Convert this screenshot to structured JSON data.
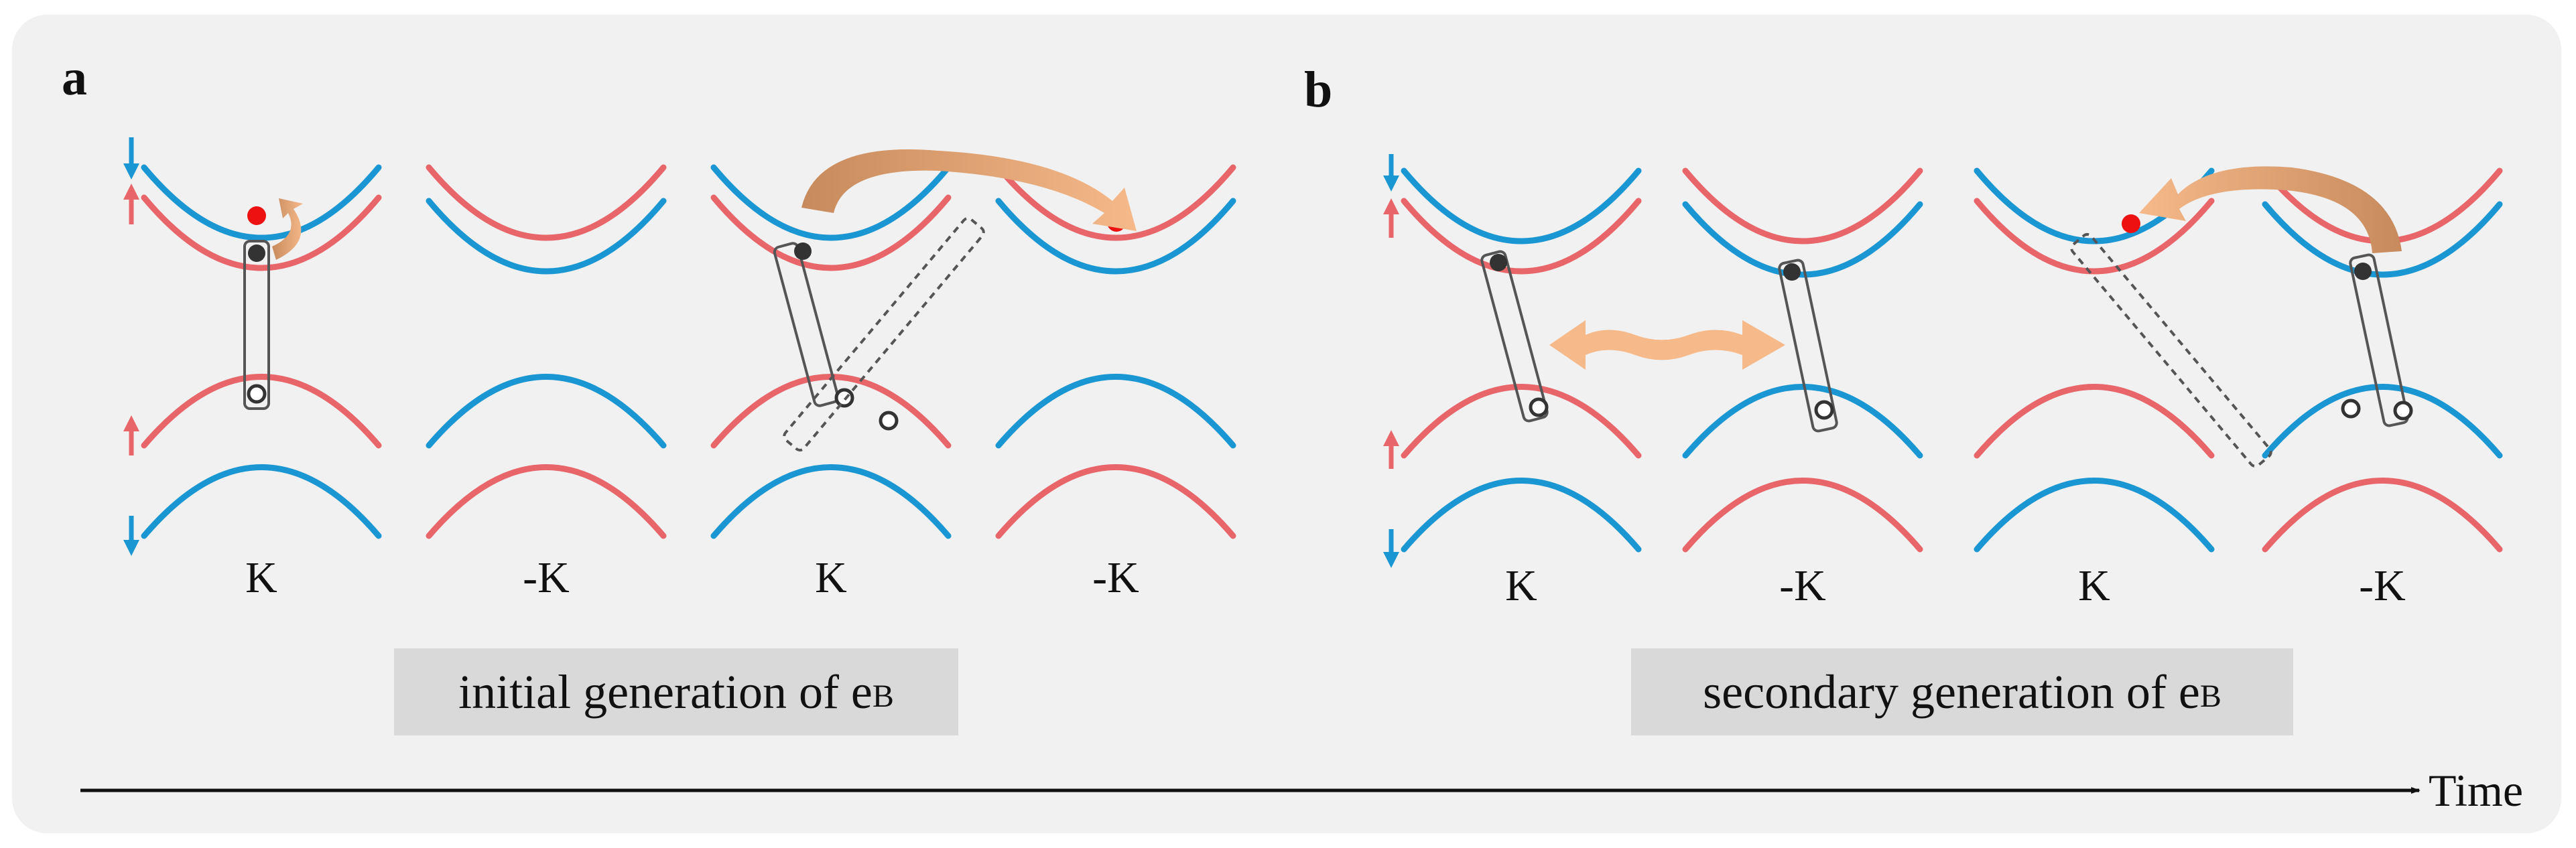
{
  "panels": {
    "a": {
      "label": "a",
      "valleys": [
        "K",
        "-K",
        "K",
        "-K"
      ],
      "caption_text": "initial generation of e",
      "caption_sub": "B"
    },
    "b": {
      "label": "b",
      "valleys": [
        "K",
        "-K",
        "K",
        "-K"
      ],
      "caption_text": "secondary generation of e",
      "caption_sub": "B"
    }
  },
  "time_axis": {
    "label": "Time"
  },
  "colors": {
    "spin_up_band": "#e8666a",
    "spin_down_band": "#1a96d2",
    "hot_electron": "#ee1111",
    "arrow_dark": "#c68a5c",
    "arrow_light": "#f6b98a",
    "background": "#f1f1f1",
    "caption_bg": "#d9d9d9"
  }
}
